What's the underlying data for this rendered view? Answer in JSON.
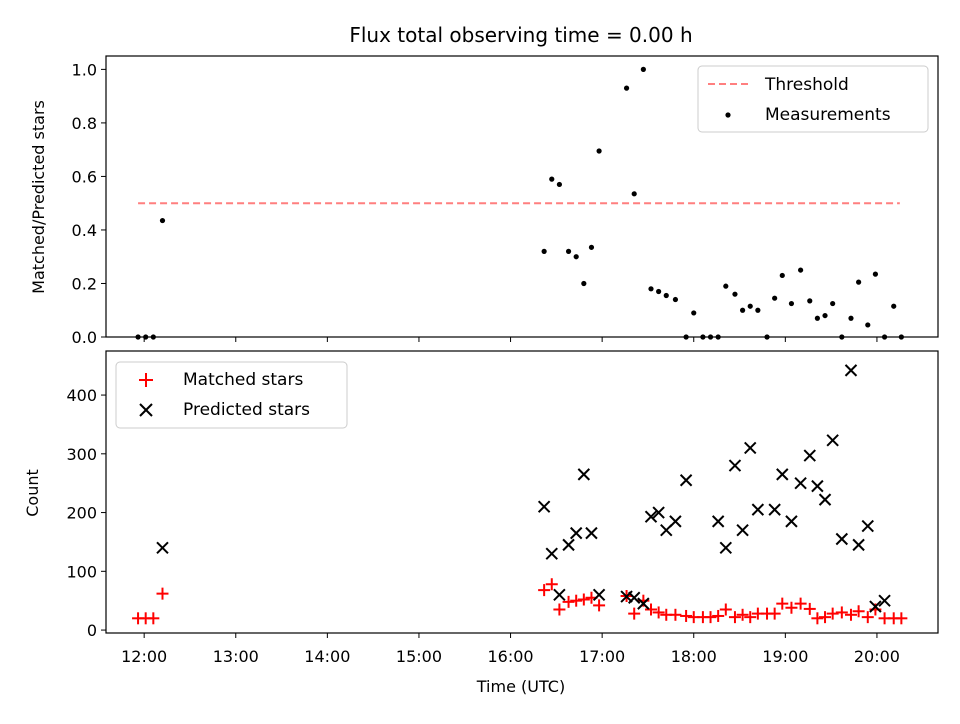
{
  "figure": {
    "title": "Flux total observing time = 0.00 h",
    "xlabel": "Time (UTC)"
  },
  "colors": {
    "threshold": "#ff7f7f",
    "measurement": "#000000",
    "matched": "#ff0000",
    "predicted": "#000000"
  },
  "chart_data": [
    {
      "type": "scatter",
      "ylabel": "Matched/Predicted stars",
      "xlim": [
        "11:35",
        "20:40"
      ],
      "ylim": [
        0,
        1.05
      ],
      "yticks": [
        "0.0",
        "0.2",
        "0.4",
        "0.6",
        "0.8",
        "1.0"
      ],
      "legend_position": "top-right",
      "threshold": {
        "name": "Threshold",
        "y": 0.5,
        "x_range": [
          "11:56",
          "20:15"
        ]
      },
      "series": [
        {
          "name": "Measurements",
          "x": [
            "11:56",
            "12:01",
            "12:06",
            "12:12",
            "16:22",
            "16:27",
            "16:32",
            "16:38",
            "16:43",
            "16:48",
            "16:53",
            "16:58",
            "17:16",
            "17:21",
            "17:27",
            "17:32",
            "17:37",
            "17:42",
            "17:48",
            "17:55",
            "18:00",
            "18:06",
            "18:11",
            "18:16",
            "18:21",
            "18:27",
            "18:32",
            "18:37",
            "18:42",
            "18:48",
            "18:53",
            "18:58",
            "19:04",
            "19:10",
            "19:16",
            "19:21",
            "19:26",
            "19:31",
            "19:37",
            "19:43",
            "19:48",
            "19:54",
            "19:59",
            "20:05",
            "20:11",
            "20:16"
          ],
          "y": [
            0,
            0,
            0,
            0.435,
            0.32,
            0.59,
            0.57,
            0.32,
            0.3,
            0.2,
            0.335,
            0.695,
            0.93,
            0.535,
            1.0,
            0.18,
            0.17,
            0.155,
            0.14,
            0,
            0.09,
            0,
            0,
            0,
            0.19,
            0.16,
            0.1,
            0.115,
            0.1,
            0,
            0.145,
            0.23,
            0.125,
            0.25,
            0.135,
            0.07,
            0.08,
            0.125,
            0,
            0.07,
            0.205,
            0.045,
            0.235,
            0,
            0.115,
            0
          ]
        }
      ]
    },
    {
      "type": "scatter",
      "ylabel": "Count",
      "xlim": [
        "11:35",
        "20:40"
      ],
      "ylim": [
        -5,
        475
      ],
      "yticks": [
        "0",
        "100",
        "200",
        "300",
        "400"
      ],
      "xticks": [
        "12:00",
        "13:00",
        "14:00",
        "15:00",
        "16:00",
        "17:00",
        "18:00",
        "19:00",
        "20:00"
      ],
      "legend_position": "top-left",
      "series": [
        {
          "name": "Matched stars",
          "x": [
            "11:56",
            "12:01",
            "12:06",
            "12:12",
            "16:22",
            "16:27",
            "16:32",
            "16:38",
            "16:43",
            "16:48",
            "16:53",
            "16:58",
            "17:16",
            "17:21",
            "17:27",
            "17:32",
            "17:37",
            "17:42",
            "17:48",
            "17:55",
            "18:00",
            "18:06",
            "18:11",
            "18:16",
            "18:21",
            "18:27",
            "18:32",
            "18:37",
            "18:42",
            "18:48",
            "18:53",
            "18:58",
            "19:04",
            "19:10",
            "19:16",
            "19:21",
            "19:26",
            "19:31",
            "19:37",
            "19:43",
            "19:48",
            "19:54",
            "19:59",
            "20:05",
            "20:11",
            "20:16"
          ],
          "y": [
            20,
            20,
            20,
            62,
            68,
            78,
            35,
            48,
            50,
            52,
            55,
            42,
            58,
            28,
            50,
            35,
            30,
            26,
            26,
            24,
            22,
            22,
            22,
            24,
            35,
            22,
            26,
            22,
            28,
            28,
            28,
            45,
            38,
            45,
            36,
            20,
            22,
            28,
            30,
            26,
            32,
            22,
            35,
            20,
            20,
            20
          ]
        },
        {
          "name": "Predicted stars",
          "x": [
            "12:12",
            "16:22",
            "16:27",
            "16:32",
            "16:38",
            "16:43",
            "16:48",
            "16:53",
            "16:58",
            "17:16",
            "17:21",
            "17:27",
            "17:32",
            "17:37",
            "17:42",
            "17:48",
            "17:55",
            "18:16",
            "18:21",
            "18:27",
            "18:32",
            "18:37",
            "18:42",
            "18:53",
            "18:58",
            "19:04",
            "19:10",
            "19:16",
            "19:21",
            "19:26",
            "19:31",
            "19:37",
            "19:43",
            "19:48",
            "19:54",
            "19:59",
            "20:05"
          ],
          "y": [
            140,
            210,
            130,
            60,
            145,
            165,
            265,
            165,
            60,
            57,
            55,
            45,
            193,
            200,
            170,
            185,
            255,
            185,
            140,
            280,
            170,
            310,
            205,
            205,
            265,
            185,
            250,
            297,
            245,
            222,
            323,
            155,
            442,
            145,
            177,
            40,
            50
          ]
        }
      ]
    }
  ]
}
